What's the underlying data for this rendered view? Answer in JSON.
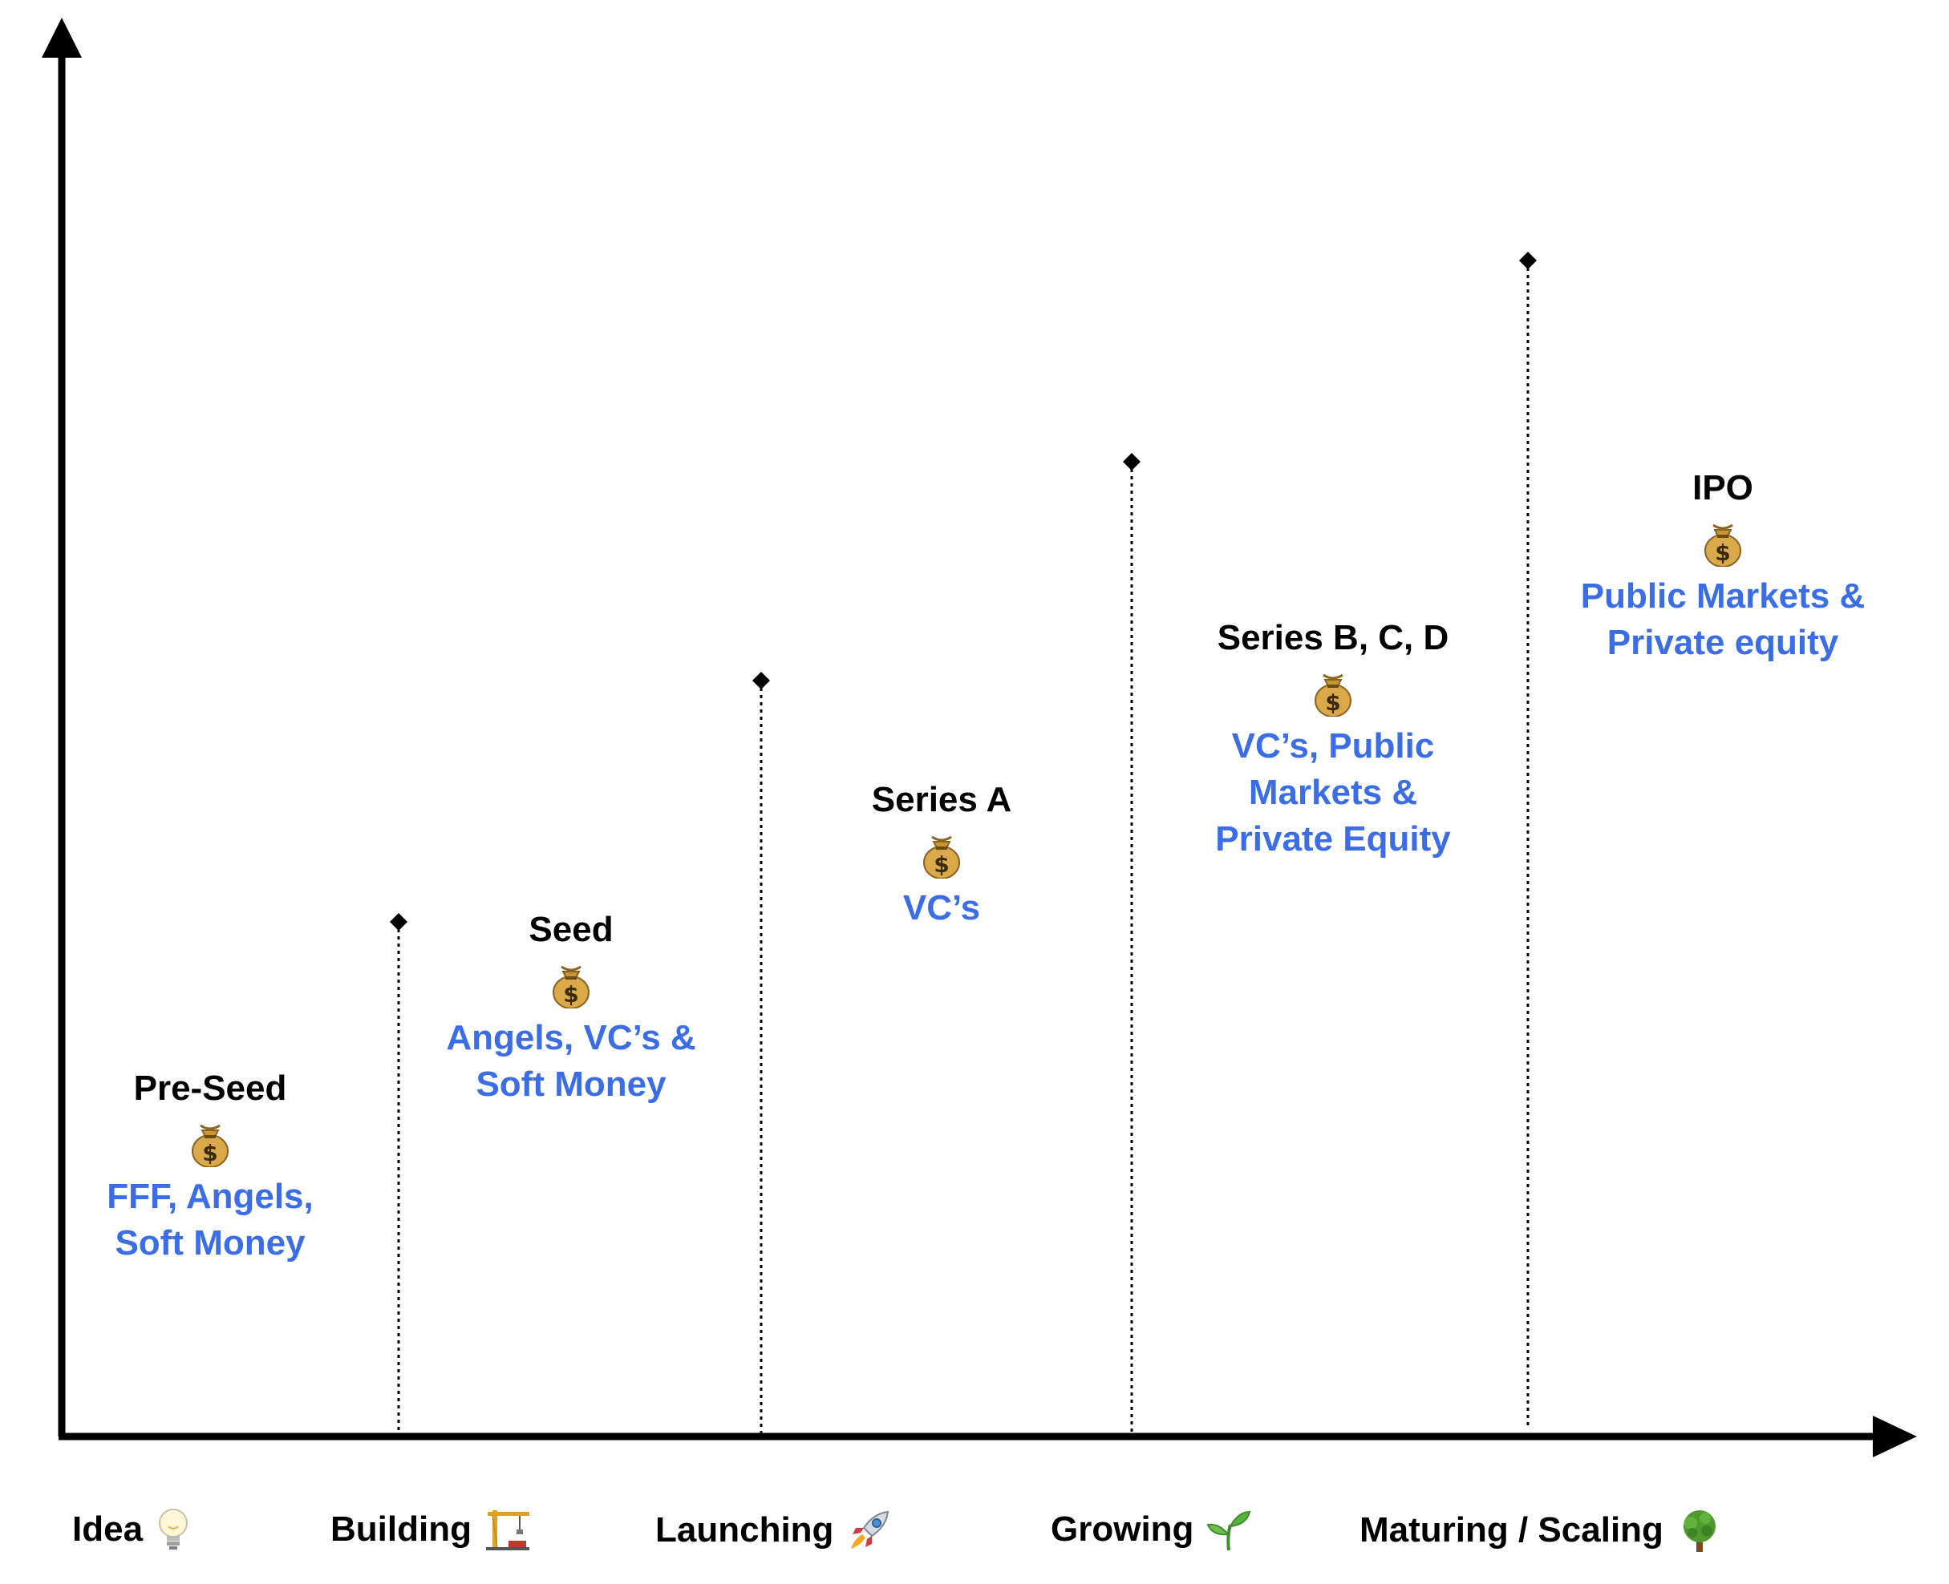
{
  "colors": {
    "axis": "#000000",
    "source_text": "#3b6ee6",
    "stage_text": "#000000"
  },
  "stages": [
    {
      "name": "Pre-Seed",
      "icon": "money-bag-icon",
      "sources": "FFF, Angels,\nSoft Money"
    },
    {
      "name": "Seed",
      "icon": "money-bag-icon",
      "sources": "Angels, VC’s &\nSoft Money"
    },
    {
      "name": "Series A",
      "icon": "money-bag-icon",
      "sources": "VC’s"
    },
    {
      "name": "Series B, C, D",
      "icon": "money-bag-icon",
      "sources": "VC’s, Public\nMarkets &\nPrivate Equity"
    },
    {
      "name": "IPO",
      "icon": "money-bag-icon",
      "sources": "Public Markets &\nPrivate equity"
    }
  ],
  "phases": [
    {
      "label": "Idea",
      "icon": "light-bulb-icon"
    },
    {
      "label": "Building",
      "icon": "construction-crane-icon"
    },
    {
      "label": "Launching",
      "icon": "rocket-icon"
    },
    {
      "label": "Growing",
      "icon": "seedling-icon"
    },
    {
      "label": "Maturing / Scaling",
      "icon": "tree-icon"
    }
  ]
}
